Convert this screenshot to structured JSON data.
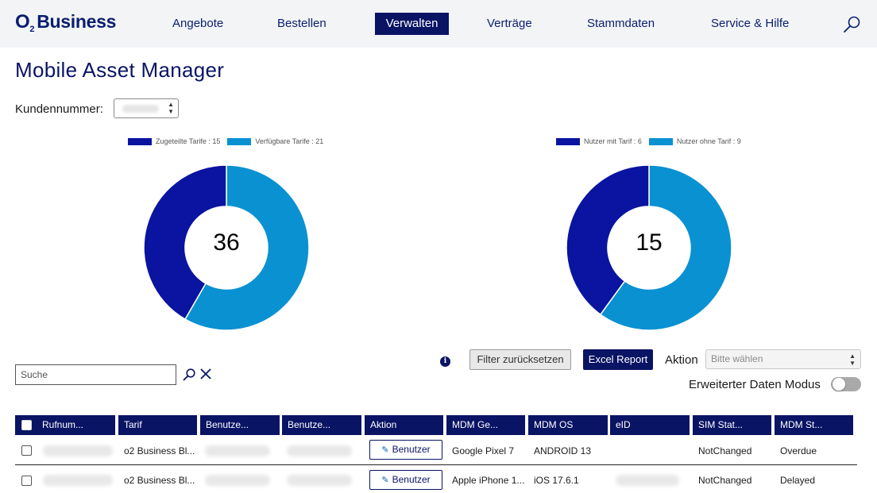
{
  "header": {
    "logo_o": "O",
    "logo_sub": "2",
    "logo_text": "Business",
    "nav": [
      {
        "label": "Angebote"
      },
      {
        "label": "Bestellen"
      },
      {
        "label": "Verwalten",
        "active": true
      },
      {
        "label": "Verträge"
      },
      {
        "label": "Stammdaten"
      },
      {
        "label": "Service & Hilfe"
      }
    ],
    "search_icon": "search-icon"
  },
  "page": {
    "title": "Mobile Asset Manager",
    "kundennummer_label": "Kundennummer:"
  },
  "colors": {
    "primary": "#0a1464",
    "dark_blue": "#0a14a0",
    "light_blue": "#0a91d2",
    "header_bg": "#f2f4f6"
  },
  "chart_data": [
    {
      "type": "pie",
      "variant": "donut",
      "center_label": "36",
      "legend": [
        "Zugeteilte Tarife : 15",
        "Verfügbare Tarife : 21"
      ],
      "series": [
        {
          "name": "Zugeteilte Tarife",
          "value": 15,
          "color": "#0a14a0"
        },
        {
          "name": "Verfügbare Tarife",
          "value": 21,
          "color": "#0a91d2"
        }
      ]
    },
    {
      "type": "pie",
      "variant": "donut",
      "center_label": "15",
      "legend": [
        "Nutzer mit Tarif : 6",
        "Nutzer ohne Tarif : 9"
      ],
      "series": [
        {
          "name": "Nutzer mit Tarif",
          "value": 6,
          "color": "#0a14a0"
        },
        {
          "name": "Nutzer ohne Tarif",
          "value": 9,
          "color": "#0a91d2"
        }
      ]
    }
  ],
  "toolbar": {
    "info": "i",
    "reset_label": "Filter zurücksetzen",
    "excel_label": "Excel Report",
    "aktion_label": "Aktion",
    "aktion_select": "Bitte wählen",
    "search_placeholder": "Suche",
    "extended_mode_label": "Erweiterter Daten Modus",
    "extended_mode_on": false
  },
  "table": {
    "columns": [
      "Rufnum...",
      "Tarif",
      "Benutze...",
      "Benutze...",
      "Aktion",
      "MDM Ge...",
      "MDM OS",
      "eID",
      "SIM Stat...",
      "MDM St..."
    ],
    "action_label": "Benutzer",
    "rows": [
      {
        "tarif": "o2 Business Bl...",
        "mdm_device": "Google Pixel 7",
        "mdm_os": "ANDROID 13",
        "sim_status": "NotChanged",
        "mdm_status": "Overdue"
      },
      {
        "tarif": "o2 Business Bl...",
        "mdm_device": "Apple iPhone 1...",
        "mdm_os": "iOS 17.6.1",
        "sim_status": "NotChanged",
        "mdm_status": "Delayed"
      }
    ]
  }
}
